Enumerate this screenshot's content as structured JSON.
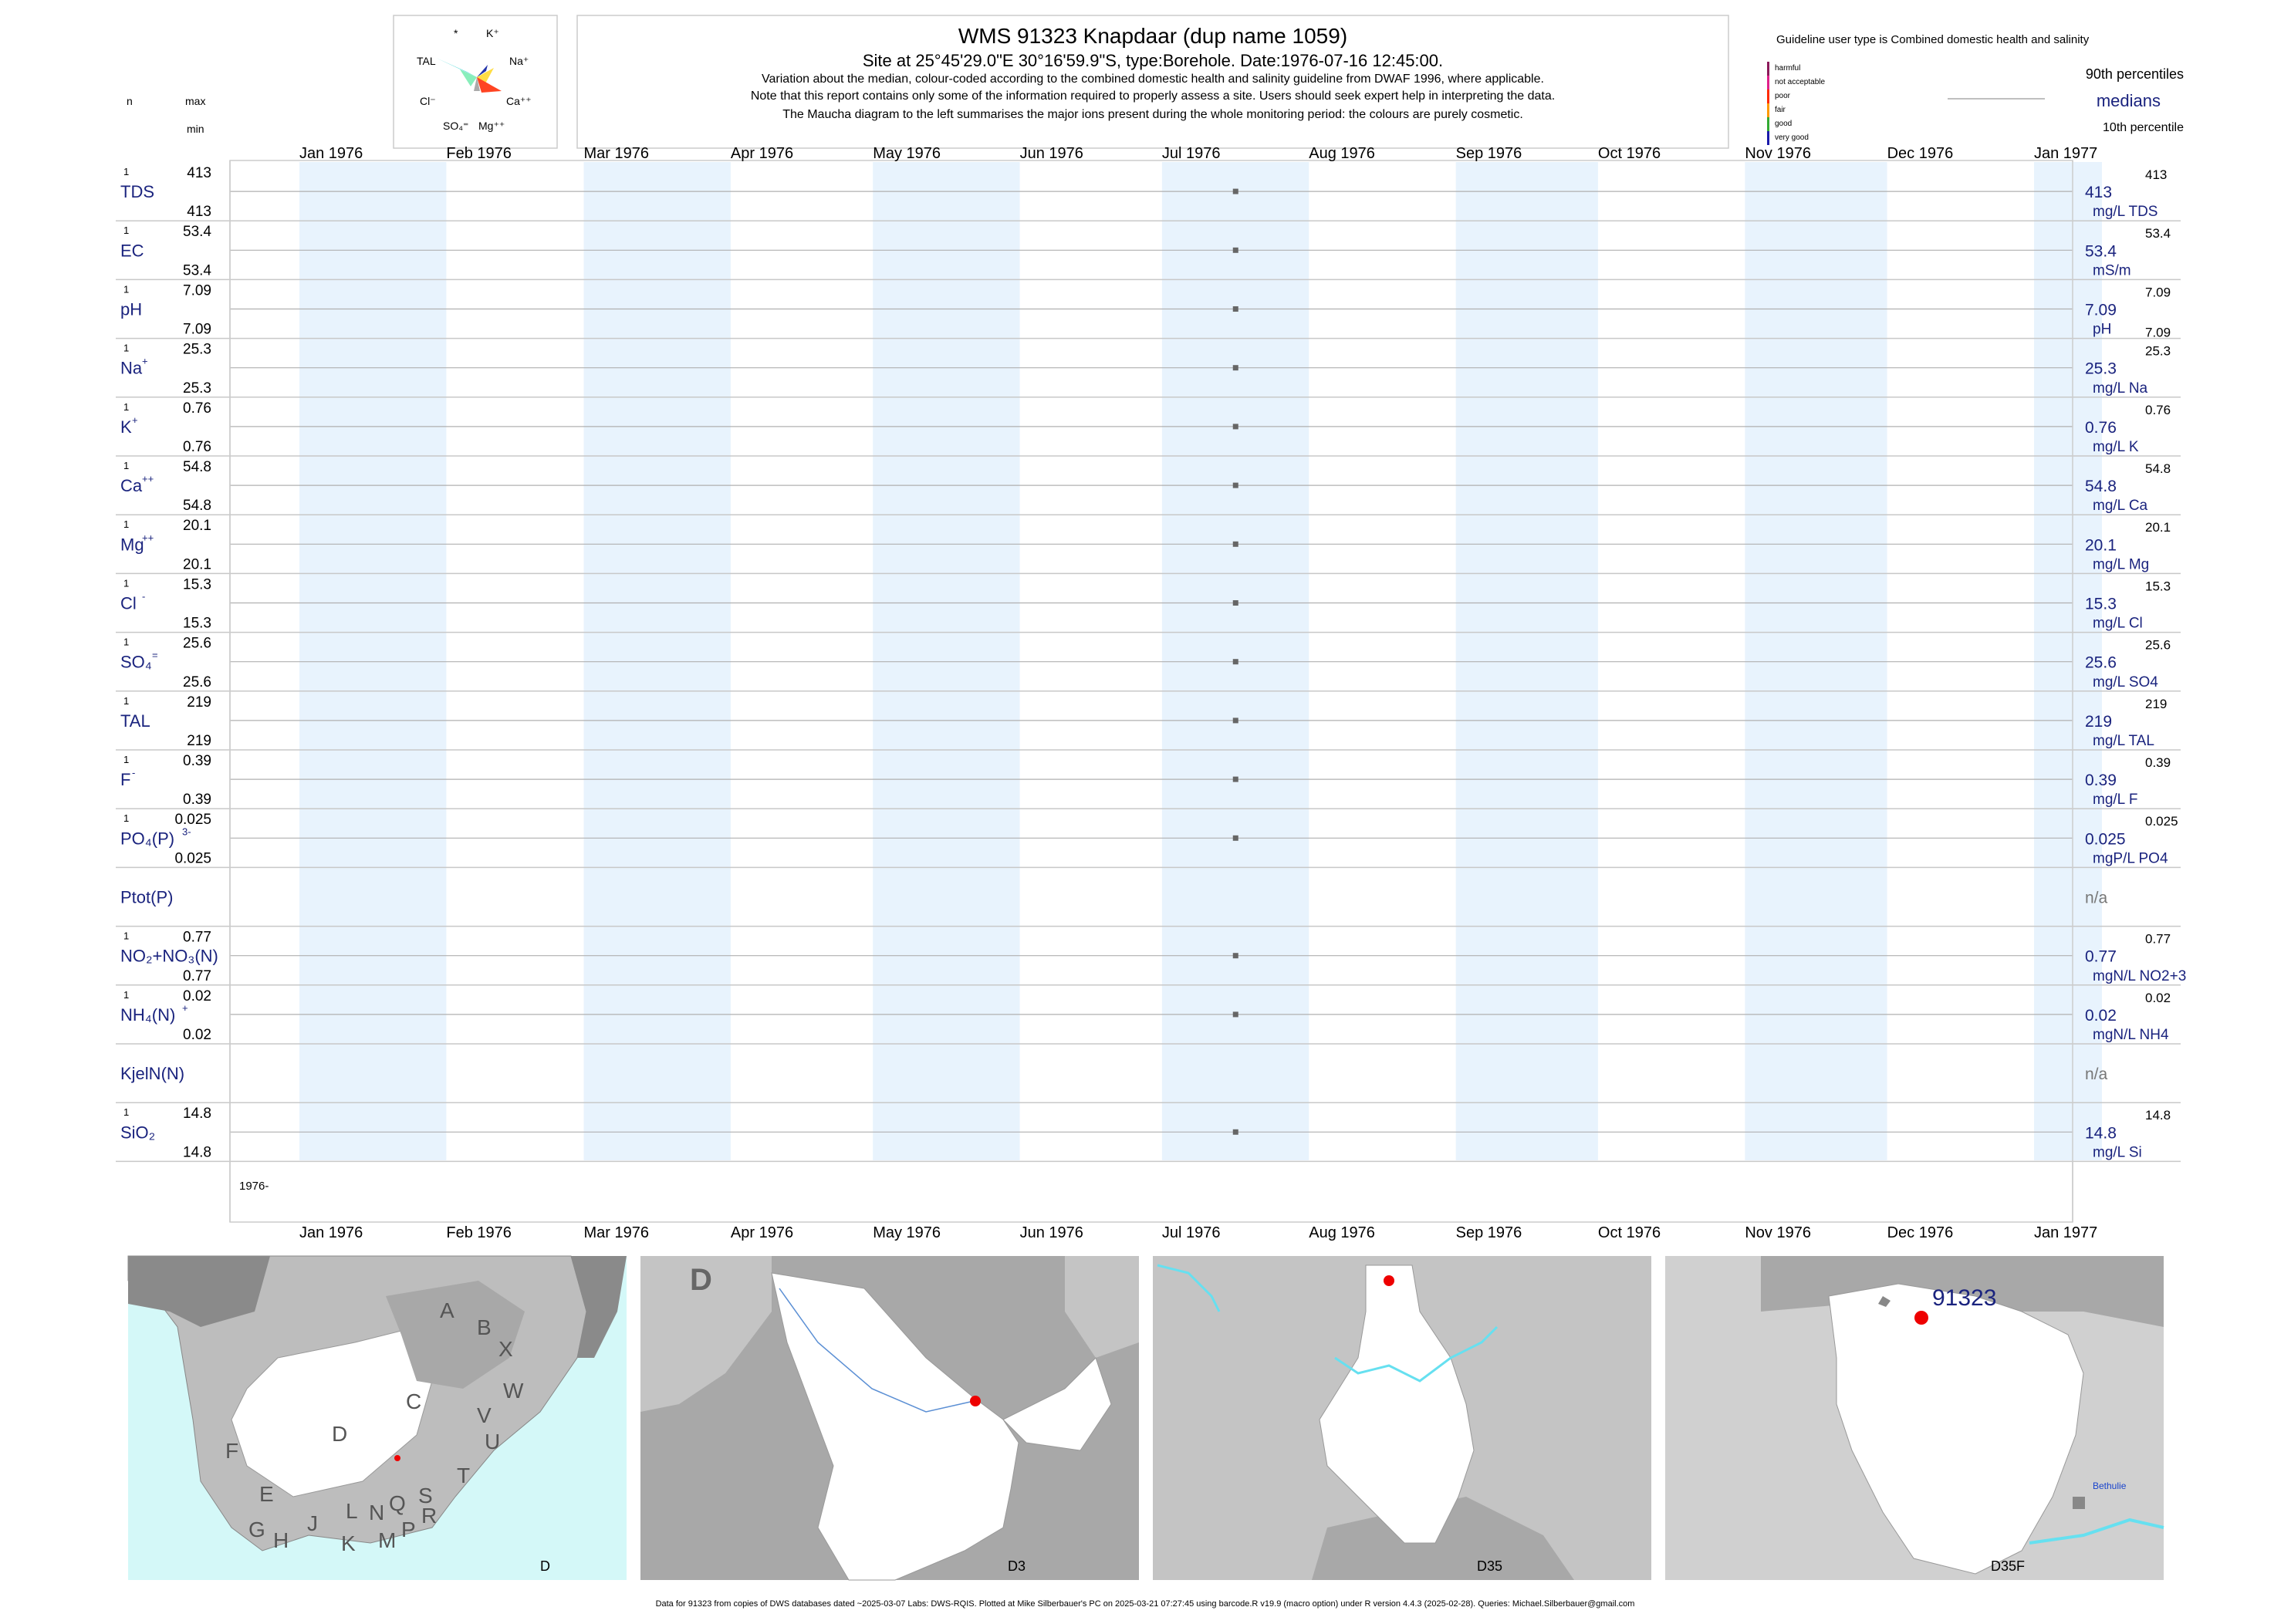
{
  "header": {
    "title": "WMS 91323  Knapdaar (dup name 1059)",
    "subtitle": "Site at 25°45'29.0\"E 30°16'59.9\"S, type:Borehole. Date:1976-07-16 12:45:00.",
    "note1": "Variation about the median,  colour-coded according to the combined domestic health and salinity guideline from DWAF 1996, where applicable.",
    "note2": "Note that this report contains only some of the information required to properly assess a site. Users should seek expert help in interpreting the data.",
    "note3": "The Maucha diagram to the left summarises the major ions present during the whole monitoring period: the colours are purely cosmetic."
  },
  "left_header": {
    "n": "n",
    "max": "max",
    "min": "min"
  },
  "maucha": {
    "labels": {
      "star": "*",
      "k": "K⁺",
      "tal": "TAL",
      "na": "Na⁺",
      "cl": "Cl⁻",
      "ca": "Ca⁺⁺",
      "so4": "SO₄⁼",
      "mg": "Mg⁺⁺"
    }
  },
  "legend": {
    "guideline": "Guideline user type is Combined domestic health and salinity",
    "p90": "90th percentiles",
    "medians": "medians",
    "p10": "10th percentile",
    "classes": [
      {
        "label": "harmful",
        "color": "#8b1a5a"
      },
      {
        "label": "not acceptable",
        "color": "#e0218a"
      },
      {
        "label": "poor",
        "color": "#ff2a00"
      },
      {
        "label": "fair",
        "color": "#ff9900"
      },
      {
        "label": "good",
        "color": "#33aa33"
      },
      {
        "label": "very good",
        "color": "#1a1aaa"
      }
    ]
  },
  "chart_data": {
    "type": "scatter",
    "months": [
      "Jan 1976",
      "Feb 1976",
      "Mar 1976",
      "Apr 1976",
      "May 1976",
      "Jun 1976",
      "Jul 1976",
      "Aug 1976",
      "Sep 1976",
      "Oct 1976",
      "Nov 1976",
      "Dec 1976",
      "Jan 1977"
    ],
    "sample_date": "1976-07-16",
    "year_label": "1976-",
    "variables": [
      {
        "name": "TDS",
        "sup": "",
        "n": "1",
        "max": "413",
        "min": "413",
        "median": "413",
        "p90": "413",
        "p10": "",
        "unit": "mg/L TDS"
      },
      {
        "name": "EC",
        "sup": "",
        "n": "1",
        "max": "53.4",
        "min": "53.4",
        "median": "53.4",
        "p90": "53.4",
        "p10": "",
        "unit": "mS/m"
      },
      {
        "name": "pH",
        "sup": "",
        "n": "1",
        "max": "7.09",
        "min": "7.09",
        "median": "7.09",
        "p90": "7.09",
        "p10": "7.09",
        "unit": "pH"
      },
      {
        "name": "Na",
        "sup": "+",
        "n": "1",
        "max": "25.3",
        "min": "25.3",
        "median": "25.3",
        "p90": "25.3",
        "p10": "",
        "unit": "mg/L Na"
      },
      {
        "name": "K",
        "sup": "+",
        "n": "1",
        "max": "0.76",
        "min": "0.76",
        "median": "0.76",
        "p90": "0.76",
        "p10": "",
        "unit": "mg/L K"
      },
      {
        "name": "Ca",
        "sup": "++",
        "n": "1",
        "max": "54.8",
        "min": "54.8",
        "median": "54.8",
        "p90": "54.8",
        "p10": "",
        "unit": "mg/L Ca"
      },
      {
        "name": "Mg",
        "sup": "++",
        "n": "1",
        "max": "20.1",
        "min": "20.1",
        "median": "20.1",
        "p90": "20.1",
        "p10": "",
        "unit": "mg/L Mg"
      },
      {
        "name": "Cl",
        "sup": "-",
        "n": "1",
        "max": "15.3",
        "min": "15.3",
        "median": "15.3",
        "p90": "15.3",
        "p10": "",
        "unit": "mg/L Cl"
      },
      {
        "name": "SO₄",
        "sup": "=",
        "n": "1",
        "max": "25.6",
        "min": "25.6",
        "median": "25.6",
        "p90": "25.6",
        "p10": "",
        "unit": "mg/L SO4"
      },
      {
        "name": "TAL",
        "sup": "",
        "n": "1",
        "max": "219",
        "min": "219",
        "median": "219",
        "p90": "219",
        "p10": "",
        "unit": "mg/L TAL"
      },
      {
        "name": "F",
        "sup": "-",
        "n": "1",
        "max": "0.39",
        "min": "0.39",
        "median": "0.39",
        "p90": "0.39",
        "p10": "",
        "unit": "mg/L F"
      },
      {
        "name": "PO₄(P)",
        "sup": "3-",
        "n": "1",
        "max": "0.025",
        "min": "0.025",
        "median": "0.025",
        "p90": "0.025",
        "p10": "",
        "unit": "mgP/L PO4"
      },
      {
        "name": "Ptot(P)",
        "sup": "",
        "n": "",
        "max": "",
        "min": "",
        "median": "n/a",
        "p90": "",
        "p10": "",
        "unit": ""
      },
      {
        "name": "NO₂+NO₃(N)",
        "sup": "",
        "n": "1",
        "max": "0.77",
        "min": "0.77",
        "median": "0.77",
        "p90": "0.77",
        "p10": "",
        "unit": "mgN/L NO2+3"
      },
      {
        "name": "NH₄(N)",
        "sup": "+",
        "n": "1",
        "max": "0.02",
        "min": "0.02",
        "median": "0.02",
        "p90": "0.02",
        "p10": "",
        "unit": "mgN/L NH4"
      },
      {
        "name": "KjelN(N)",
        "sup": "",
        "n": "",
        "max": "",
        "min": "",
        "median": "n/a",
        "p90": "",
        "p10": "",
        "unit": ""
      },
      {
        "name": "SiO₂",
        "sup": "",
        "n": "1",
        "max": "14.8",
        "min": "14.8",
        "median": "14.8",
        "p90": "14.8",
        "p10": "",
        "unit": "mg/L Si"
      }
    ]
  },
  "maps": {
    "map1_regions": [
      "A",
      "B",
      "X",
      "W",
      "C",
      "V",
      "U",
      "T",
      "D",
      "F",
      "E",
      "G",
      "H",
      "J",
      "K",
      "L",
      "M",
      "N",
      "P",
      "Q",
      "R",
      "S"
    ],
    "map1_label": "D",
    "map2_big": "D",
    "map2_label": "D3",
    "map3_label": "D35",
    "map4_label": "D35F",
    "map4_site": "91323",
    "map4_town": "Bethulie"
  },
  "footer": "Data for 91323 from copies of DWS databases dated ~2025-03-07 Labs: DWS-RQIS. Plotted at Mike Silberbauer's PC on 2025-03-21 07:27:45 using barcode.R v19.9 (macro option) under R version 4.4.3 (2025-02-28). Queries: Michael.Silberbauer@gmail.com"
}
